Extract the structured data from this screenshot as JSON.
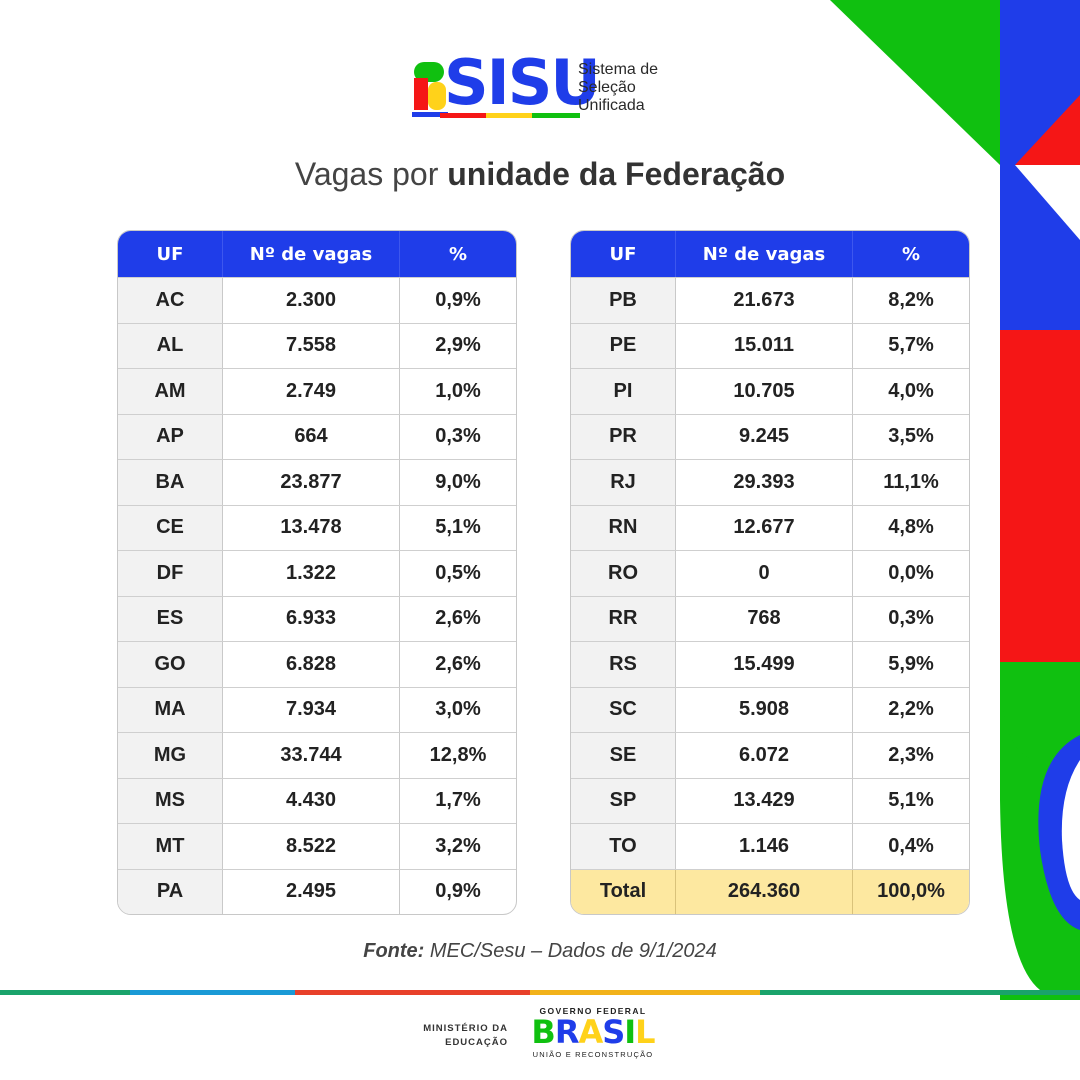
{
  "logo": {
    "word": "SISU",
    "subtitle_lines": [
      "Sistema de",
      "Seleção",
      "Unificada"
    ]
  },
  "title": {
    "regular": "Vagas por ",
    "bold": "unidade da Federação"
  },
  "table_headers": {
    "uf": "UF",
    "vagas": "Nº de vagas",
    "pct": "%"
  },
  "left_rows": [
    {
      "uf": "AC",
      "vagas": "2.300",
      "pct": "0,9%"
    },
    {
      "uf": "AL",
      "vagas": "7.558",
      "pct": "2,9%"
    },
    {
      "uf": "AM",
      "vagas": "2.749",
      "pct": "1,0%"
    },
    {
      "uf": "AP",
      "vagas": "664",
      "pct": "0,3%"
    },
    {
      "uf": "BA",
      "vagas": "23.877",
      "pct": "9,0%"
    },
    {
      "uf": "CE",
      "vagas": "13.478",
      "pct": "5,1%"
    },
    {
      "uf": "DF",
      "vagas": "1.322",
      "pct": "0,5%"
    },
    {
      "uf": "ES",
      "vagas": "6.933",
      "pct": "2,6%"
    },
    {
      "uf": "GO",
      "vagas": "6.828",
      "pct": "2,6%"
    },
    {
      "uf": "MA",
      "vagas": "7.934",
      "pct": "3,0%"
    },
    {
      "uf": "MG",
      "vagas": "33.744",
      "pct": "12,8%"
    },
    {
      "uf": "MS",
      "vagas": "4.430",
      "pct": "1,7%"
    },
    {
      "uf": "MT",
      "vagas": "8.522",
      "pct": "3,2%"
    },
    {
      "uf": "PA",
      "vagas": "2.495",
      "pct": "0,9%"
    }
  ],
  "right_rows": [
    {
      "uf": "PB",
      "vagas": "21.673",
      "pct": "8,2%"
    },
    {
      "uf": "PE",
      "vagas": "15.011",
      "pct": "5,7%"
    },
    {
      "uf": "PI",
      "vagas": "10.705",
      "pct": "4,0%"
    },
    {
      "uf": "PR",
      "vagas": "9.245",
      "pct": "3,5%"
    },
    {
      "uf": "RJ",
      "vagas": "29.393",
      "pct": "11,1%"
    },
    {
      "uf": "RN",
      "vagas": "12.677",
      "pct": "4,8%"
    },
    {
      "uf": "RO",
      "vagas": "0",
      "pct": "0,0%"
    },
    {
      "uf": "RR",
      "vagas": "768",
      "pct": "0,3%"
    },
    {
      "uf": "RS",
      "vagas": "15.499",
      "pct": "5,9%"
    },
    {
      "uf": "SC",
      "vagas": "5.908",
      "pct": "2,2%"
    },
    {
      "uf": "SE",
      "vagas": "6.072",
      "pct": "2,3%"
    },
    {
      "uf": "SP",
      "vagas": "13.429",
      "pct": "5,1%"
    },
    {
      "uf": "TO",
      "vagas": "1.146",
      "pct": "0,4%"
    }
  ],
  "total_row": {
    "uf": "Total",
    "vagas": "264.360",
    "pct": "100,0%"
  },
  "source": {
    "label": "Fonte:",
    "text": " MEC/Sesu – Dados de 9/1/2024"
  },
  "footer": {
    "ministry_lines": [
      "MINISTÉRIO DA",
      "EDUCAÇÃO"
    ],
    "gov_top": "GOVERNO FEDERAL",
    "gov_word_letters": [
      "B",
      "R",
      "A",
      "S",
      "I",
      "L"
    ],
    "gov_bottom": "UNIÃO E RECONSTRUÇÃO"
  },
  "colors": {
    "blue": "#1f3de9",
    "green": "#10c010",
    "red": "#f51616",
    "yellow": "#ffd21a",
    "total_bg": "#fde8a0",
    "stripe": [
      "#1aa36b",
      "#1a9ad6",
      "#e8402a",
      "#f2b21a",
      "#1aa36b"
    ]
  }
}
